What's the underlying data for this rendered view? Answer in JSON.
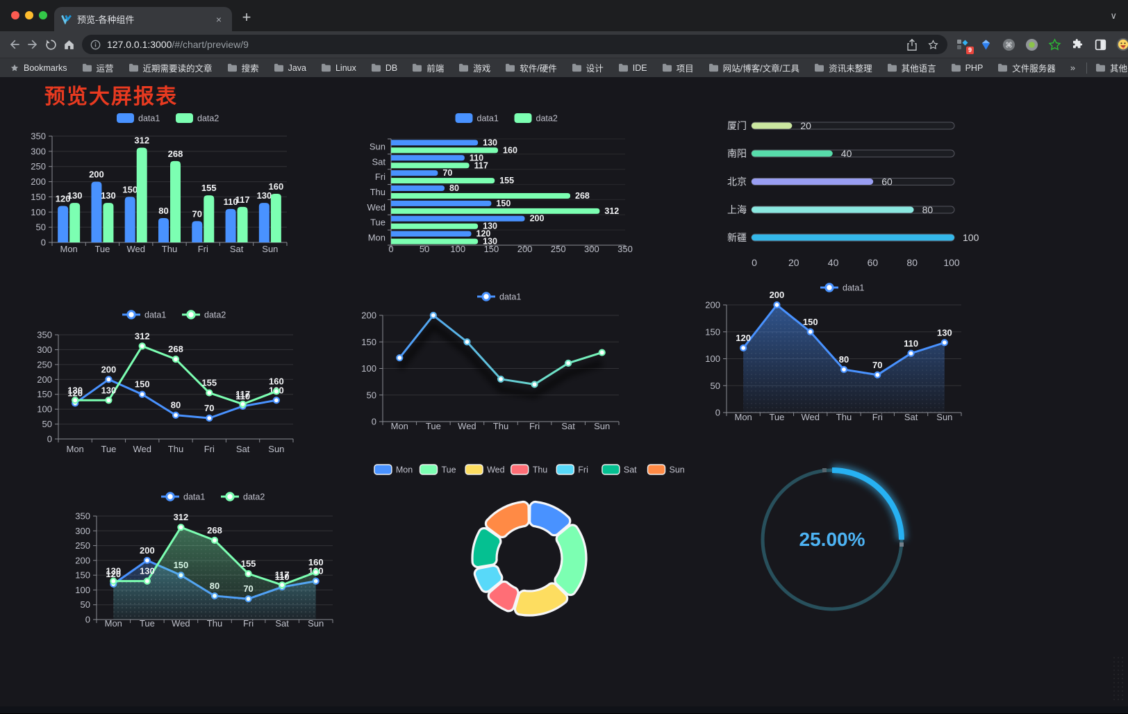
{
  "browser": {
    "tab_title": "预览-各种组件",
    "url_host": "127.0.0.1:3000",
    "url_path": "/#/chart/preview/9",
    "bookmarks_label": "Bookmarks",
    "bookmark_folders": [
      "运营",
      "近期需要读的文章",
      "搜索",
      "Java",
      "Linux",
      "DB",
      "前端",
      "游戏",
      "软件/硬件",
      "设计",
      "IDE",
      "项目",
      "网站/博客/文章/工具",
      "资讯未整理",
      "其他语言",
      "PHP",
      "文件服务器"
    ],
    "overflow_chevron": "»",
    "other_bookmarks": "其他书签",
    "extension_badge": "9",
    "new_tab_label": "+",
    "close_tab_label": "×",
    "tab_list_chevron": "∨"
  },
  "page": {
    "title": "预览大屏报表",
    "title_color": "#e83a20",
    "background": "#17171c"
  },
  "chart_data": [
    {
      "id": "bar-grouped",
      "type": "bar",
      "categories": [
        "Mon",
        "Tue",
        "Wed",
        "Thu",
        "Fri",
        "Sat",
        "Sun"
      ],
      "series": [
        {
          "name": "data1",
          "color": "#4992ff",
          "values": [
            120,
            200,
            150,
            80,
            70,
            110,
            130
          ]
        },
        {
          "name": "data2",
          "color": "#7cffb2",
          "values": [
            130,
            130,
            312,
            268,
            155,
            117,
            160
          ]
        }
      ],
      "ylim": [
        0,
        350
      ],
      "ytick_step": 50,
      "grid": true,
      "legend_position": "top",
      "labels": true
    },
    {
      "id": "bar-horizontal",
      "type": "bar-horizontal",
      "categories": [
        "Mon",
        "Tue",
        "Wed",
        "Thu",
        "Fri",
        "Sat",
        "Sun"
      ],
      "series": [
        {
          "name": "data1",
          "color": "#4992ff",
          "values": [
            120,
            200,
            150,
            80,
            70,
            110,
            130
          ]
        },
        {
          "name": "data2",
          "color": "#7cffb2",
          "values": [
            130,
            130,
            312,
            268,
            155,
            117,
            160
          ]
        }
      ],
      "xlim": [
        0,
        350
      ],
      "xtick_step": 50,
      "legend_position": "top",
      "labels": true
    },
    {
      "id": "progress-list",
      "type": "progress",
      "items": [
        {
          "label": "厦门",
          "value": 20,
          "color": "#cbe7a0"
        },
        {
          "label": "南阳",
          "value": 40,
          "color": "#57dcaa"
        },
        {
          "label": "北京",
          "value": 60,
          "color": "#999ef2"
        },
        {
          "label": "上海",
          "value": 80,
          "color": "#8ae8e0"
        },
        {
          "label": "新疆",
          "value": 100,
          "color": "#34b7e9"
        }
      ],
      "xlim": [
        0,
        100
      ],
      "xticks": [
        0,
        20,
        40,
        60,
        80,
        100
      ]
    },
    {
      "id": "line-grouped",
      "type": "line",
      "categories": [
        "Mon",
        "Tue",
        "Wed",
        "Thu",
        "Fri",
        "Sat",
        "Sun"
      ],
      "series": [
        {
          "name": "data1",
          "color": "#4992ff",
          "values": [
            120,
            200,
            150,
            80,
            70,
            110,
            130
          ]
        },
        {
          "name": "data2",
          "color": "#7cffb2",
          "values": [
            130,
            130,
            312,
            268,
            155,
            117,
            160
          ]
        }
      ],
      "ylim": [
        0,
        350
      ],
      "ytick_step": 50,
      "labels": true,
      "legend_position": "top"
    },
    {
      "id": "line-gradient",
      "type": "line",
      "categories": [
        "Mon",
        "Tue",
        "Wed",
        "Thu",
        "Fri",
        "Sat",
        "Sun"
      ],
      "series": [
        {
          "name": "data1",
          "color": "#4992ff",
          "gradient": [
            "#4992ff",
            "#7cffb2"
          ],
          "values": [
            120,
            200,
            150,
            80,
            70,
            110,
            130
          ],
          "shadow": true
        }
      ],
      "ylim": [
        0,
        200
      ],
      "ytick_step": 50,
      "labels": false,
      "legend_position": "top"
    },
    {
      "id": "area-single",
      "type": "area",
      "categories": [
        "Mon",
        "Tue",
        "Wed",
        "Thu",
        "Fri",
        "Sat",
        "Sun"
      ],
      "series": [
        {
          "name": "data1",
          "color": "#4992ff",
          "values": [
            120,
            200,
            150,
            80,
            70,
            110,
            130
          ],
          "area": true
        }
      ],
      "ylim": [
        0,
        200
      ],
      "ytick_step": 50,
      "labels": true,
      "legend_position": "top"
    },
    {
      "id": "area-grouped",
      "type": "area",
      "categories": [
        "Mon",
        "Tue",
        "Wed",
        "Thu",
        "Fri",
        "Sat",
        "Sun"
      ],
      "series": [
        {
          "name": "data1",
          "color": "#4992ff",
          "values": [
            120,
            200,
            150,
            80,
            70,
            110,
            130
          ],
          "area": true
        },
        {
          "name": "data2",
          "color": "#7cffb2",
          "values": [
            130,
            130,
            312,
            268,
            155,
            117,
            160
          ],
          "area": true
        }
      ],
      "ylim": [
        0,
        350
      ],
      "ytick_step": 50,
      "labels": true,
      "legend_position": "top"
    },
    {
      "id": "donut",
      "type": "pie",
      "categories": [
        "Mon",
        "Tue",
        "Wed",
        "Thu",
        "Fri",
        "Sat",
        "Sun"
      ],
      "values": [
        120,
        200,
        150,
        80,
        70,
        110,
        130
      ],
      "colors": [
        "#4992ff",
        "#7cffb2",
        "#fddd60",
        "#ff6e76",
        "#58d9f9",
        "#05c091",
        "#ff8a45"
      ],
      "legend_position": "top",
      "inner_radius_ratio": 0.57
    },
    {
      "id": "gauge",
      "type": "gauge",
      "percent": 25,
      "value_label": "25.00%",
      "color": "#27b1f2",
      "track_color": "#28505c",
      "text_color": "#4db3f3"
    }
  ]
}
